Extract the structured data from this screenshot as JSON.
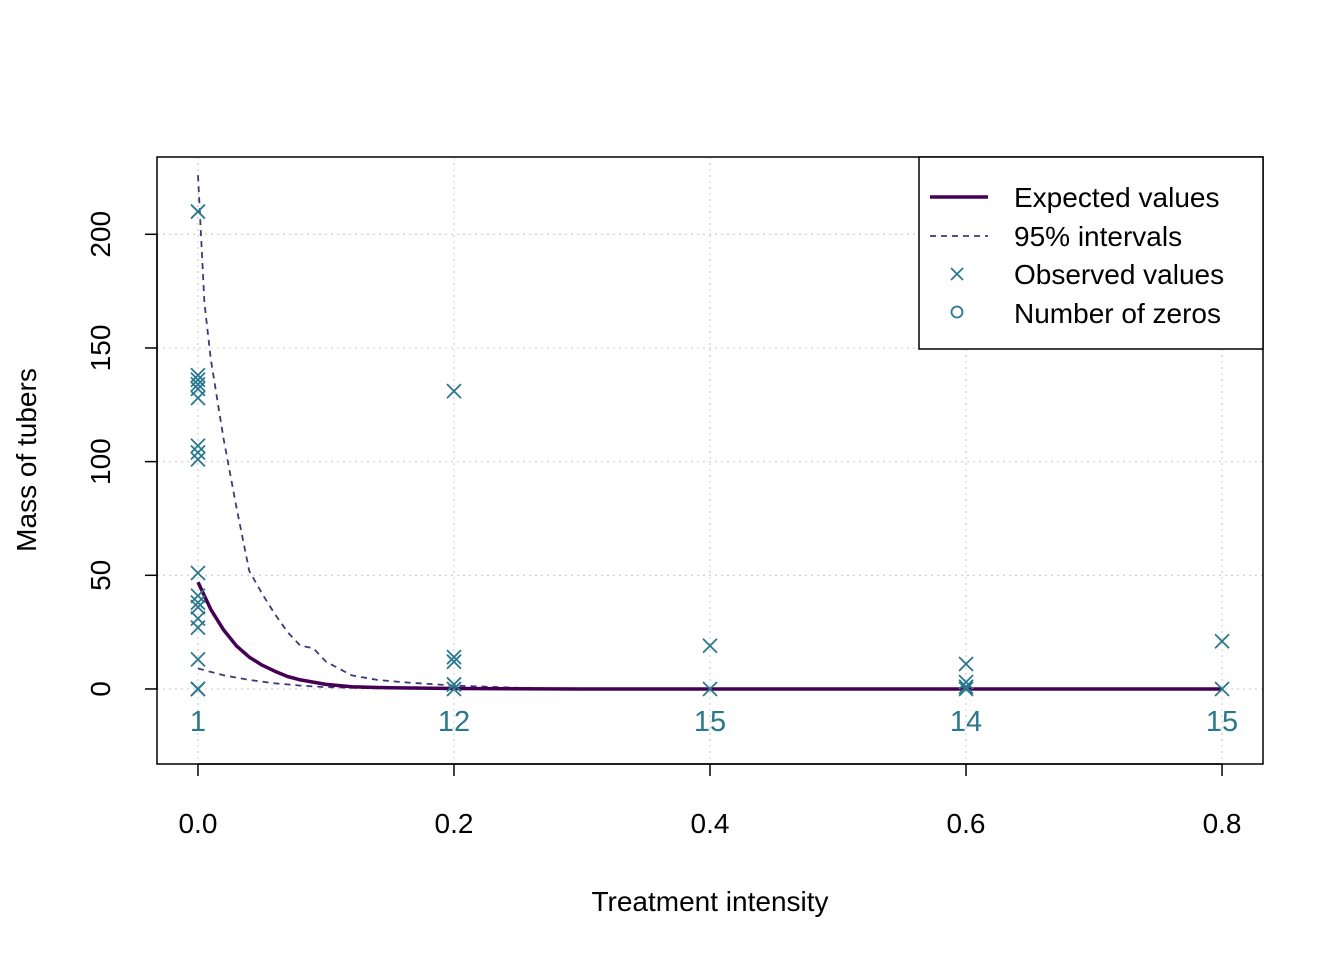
{
  "colors": {
    "expected": "#440154",
    "interval": "#3b3a7a",
    "observed": "#2a788e",
    "grid": "#d3d3d3",
    "axis": "#000000"
  },
  "chart_data": {
    "type": "scatter",
    "xlabel": "Treatment intensity",
    "ylabel": "Mass of tubers",
    "xlim": [
      -0.032,
      0.832
    ],
    "ylim": [
      -33,
      234
    ],
    "x_ticks": [
      0.0,
      0.2,
      0.4,
      0.6,
      0.8
    ],
    "x_tick_labels": [
      "0.0",
      "0.2",
      "0.4",
      "0.6",
      "0.8"
    ],
    "y_ticks": [
      0,
      50,
      100,
      150,
      200
    ],
    "y_tick_labels": [
      "0",
      "50",
      "100",
      "150",
      "200"
    ],
    "grid": true,
    "legend_position": "top-right",
    "legend": [
      {
        "label": "Expected values",
        "style": "solid-line",
        "icon": "thick-line"
      },
      {
        "label": "95% intervals",
        "style": "dashed-line",
        "icon": "dashed-line"
      },
      {
        "label": "Observed values",
        "style": "cross-marker",
        "icon": "cross"
      },
      {
        "label": "Number of zeros",
        "style": "circle-marker",
        "icon": "circle"
      }
    ],
    "series": [
      {
        "name": "Expected values",
        "x": [
          0.0,
          0.01,
          0.02,
          0.03,
          0.04,
          0.05,
          0.06,
          0.07,
          0.08,
          0.1,
          0.12,
          0.15,
          0.2,
          0.3,
          0.4,
          0.5,
          0.6,
          0.7,
          0.8
        ],
        "y": [
          47,
          35,
          26,
          19,
          14,
          10.5,
          7.8,
          5.5,
          4,
          2,
          1,
          0.5,
          0.2,
          0,
          0,
          0,
          0,
          0,
          0
        ]
      },
      {
        "name": "95% intervals upper",
        "x": [
          0.0,
          0.005,
          0.01,
          0.02,
          0.03,
          0.04,
          0.05,
          0.06,
          0.07,
          0.08,
          0.09,
          0.1,
          0.11,
          0.12,
          0.14,
          0.16,
          0.2,
          0.25,
          0.3,
          0.4,
          0.6,
          0.8
        ],
        "y": [
          226,
          170,
          145,
          110,
          80,
          52,
          42,
          33,
          25,
          19,
          18,
          12,
          9,
          6,
          4,
          3,
          1.5,
          0.5,
          0,
          0,
          0,
          0
        ]
      },
      {
        "name": "95% intervals lower",
        "x": [
          0.0,
          0.01,
          0.02,
          0.04,
          0.06,
          0.08,
          0.1,
          0.12,
          0.15,
          0.2,
          0.3,
          0.4,
          0.6,
          0.8
        ],
        "y": [
          9,
          7.5,
          6,
          4,
          2.5,
          1.5,
          0.8,
          0.5,
          0.2,
          0,
          0,
          0,
          0,
          0
        ]
      },
      {
        "name": "Observed values",
        "x": [
          0,
          0,
          0,
          0,
          0,
          0,
          0,
          0,
          0,
          0,
          0,
          0,
          0,
          0,
          0,
          0,
          0,
          0,
          0,
          0.2,
          0.2,
          0.2,
          0.2,
          0.2,
          0.4,
          0.4,
          0.6,
          0.6,
          0.6,
          0.6,
          0.8,
          0.8
        ],
        "y": [
          210,
          138,
          136,
          134,
          132,
          128,
          107,
          104,
          101,
          51,
          41,
          38,
          36,
          31,
          27,
          13,
          0,
          0,
          0,
          131,
          14,
          12,
          2,
          0,
          19,
          0,
          11,
          3,
          1,
          0,
          21,
          0
        ]
      }
    ],
    "zero_counts": {
      "x": [
        0.0,
        0.2,
        0.4,
        0.6,
        0.8
      ],
      "labels": [
        "1",
        "12",
        "15",
        "14",
        "15"
      ],
      "y": -14
    }
  }
}
